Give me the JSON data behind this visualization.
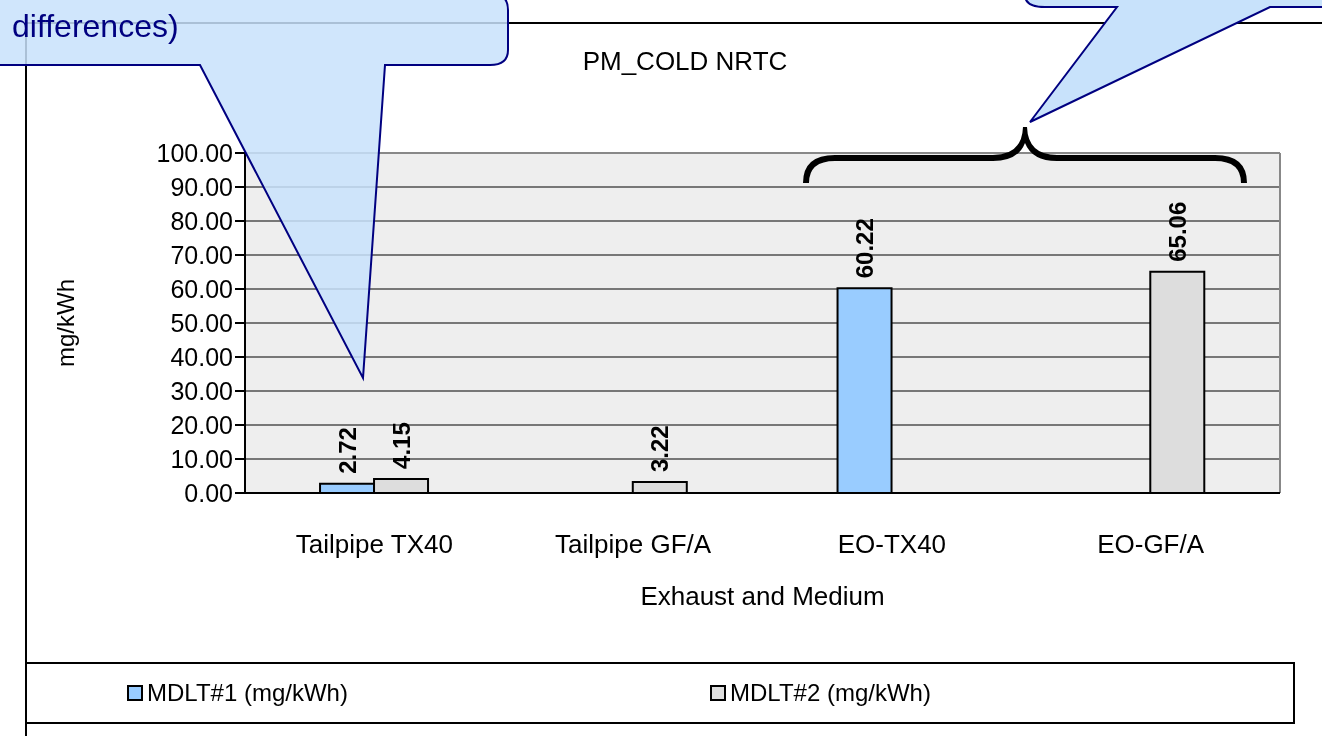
{
  "chart_data": {
    "type": "bar",
    "title": "PM_COLD NRTC",
    "xlabel": "Exhaust and Medium",
    "ylabel": "mg/kWh",
    "categories": [
      "Tailpipe TX40",
      "Tailpipe GF/A",
      "EO-TX40",
      "EO-GF/A"
    ],
    "series": [
      {
        "name": "MDLT#1 (mg/kWh)",
        "color": "#99ccff",
        "values": [
          2.72,
          null,
          60.22,
          null
        ]
      },
      {
        "name": "MDLT#2 (mg/kWh)",
        "color": "#dddddd",
        "values": [
          4.15,
          3.22,
          null,
          65.06
        ]
      }
    ],
    "ylim": [
      0,
      100
    ],
    "yticks": [
      {
        "value": 0,
        "label": "0.00"
      },
      {
        "value": 10,
        "label": "10.00"
      },
      {
        "value": 20,
        "label": "20.00"
      },
      {
        "value": 30,
        "label": "30.00"
      },
      {
        "value": 40,
        "label": "40.00"
      },
      {
        "value": 50,
        "label": "50.00"
      },
      {
        "value": 60,
        "label": "60.00"
      },
      {
        "value": 70,
        "label": "70.00"
      },
      {
        "value": 80,
        "label": "80.00"
      },
      {
        "value": 90,
        "label": "90.00"
      },
      {
        "value": 100,
        "label": "100.00"
      }
    ],
    "grid": "y",
    "legend": "bottom",
    "data_labels": true,
    "annotations": [
      "differences)"
    ]
  }
}
